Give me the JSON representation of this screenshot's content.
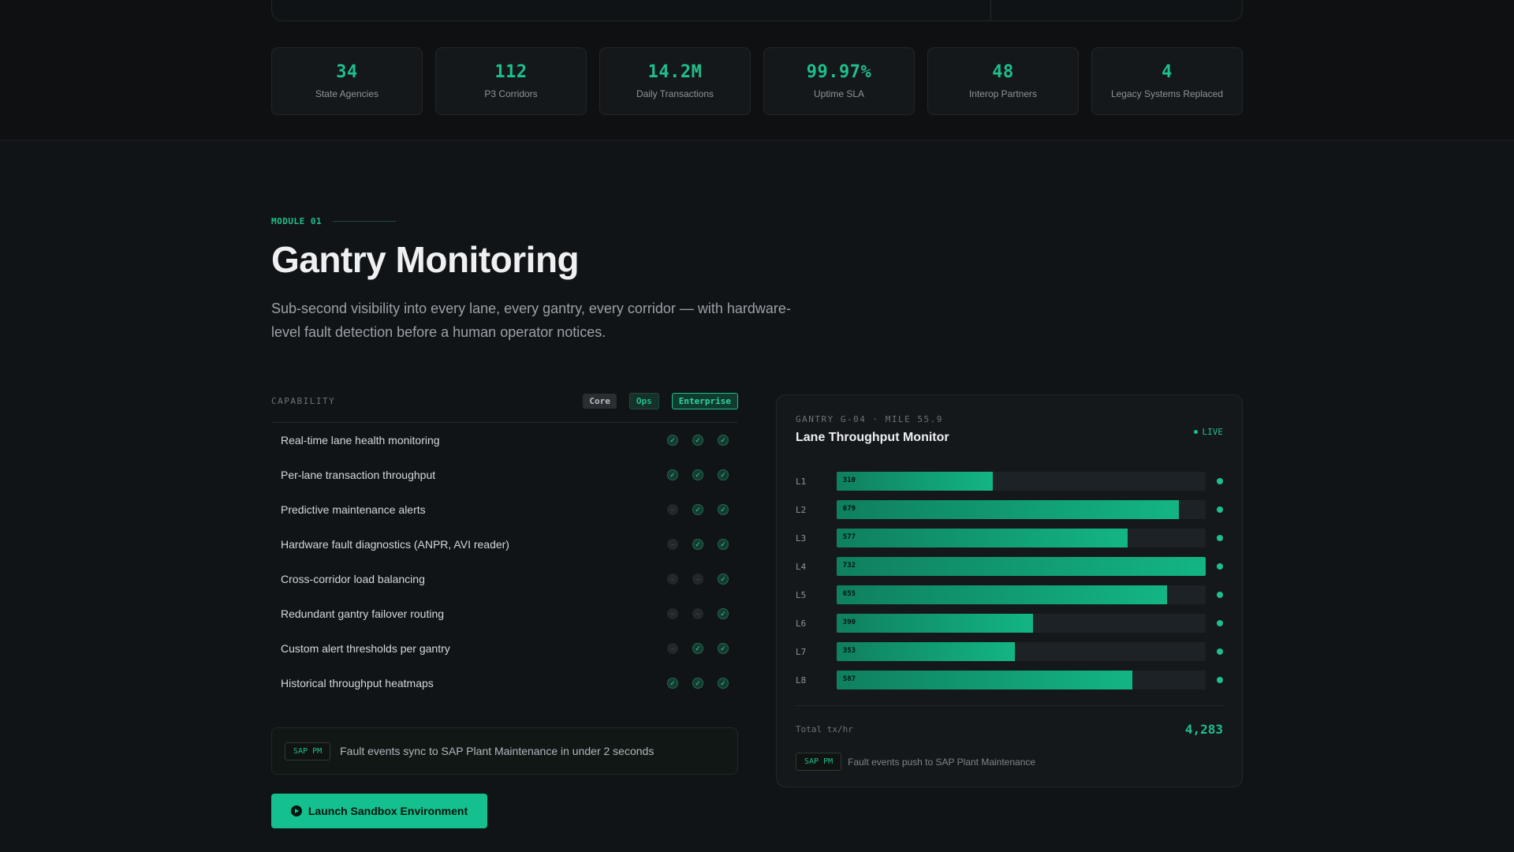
{
  "stats": [
    {
      "value": "34",
      "label": "State Agencies"
    },
    {
      "value": "112",
      "label": "P3 Corridors"
    },
    {
      "value": "14.2M",
      "label": "Daily Transactions"
    },
    {
      "value": "99.97%",
      "label": "Uptime SLA"
    },
    {
      "value": "48",
      "label": "Interop Partners"
    },
    {
      "value": "4",
      "label": "Legacy Systems Replaced"
    }
  ],
  "module": {
    "tag": "MODULE 01",
    "title": "Gantry Monitoring",
    "subtitle": "Sub-second visibility into every lane, every gantry, every corridor — with hardware-level fault detection before a human operator notices."
  },
  "capability": {
    "header": "CAPABILITY",
    "tiers": [
      "Core",
      "Ops",
      "Enterprise"
    ],
    "rows": [
      {
        "label": "Real-time lane health monitoring",
        "core": true,
        "ops": true,
        "enterprise": true
      },
      {
        "label": "Per-lane transaction throughput",
        "core": true,
        "ops": true,
        "enterprise": true
      },
      {
        "label": "Predictive maintenance alerts",
        "core": false,
        "ops": true,
        "enterprise": true
      },
      {
        "label": "Hardware fault diagnostics (ANPR, AVI reader)",
        "core": false,
        "ops": true,
        "enterprise": true
      },
      {
        "label": "Cross-corridor load balancing",
        "core": false,
        "ops": false,
        "enterprise": true
      },
      {
        "label": "Redundant gantry failover routing",
        "core": false,
        "ops": false,
        "enterprise": true
      },
      {
        "label": "Custom alert thresholds per gantry",
        "core": false,
        "ops": true,
        "enterprise": true
      },
      {
        "label": "Historical throughput heatmaps",
        "core": true,
        "ops": true,
        "enterprise": true
      }
    ],
    "sap_badge": "SAP PM",
    "sap_text": "Fault events sync to SAP Plant Maintenance in under 2 seconds"
  },
  "launch_label": "Launch Sandbox Environment",
  "monitor": {
    "subtitle": "GANTRY G-04 · MILE 55.9",
    "title": "Lane Throughput Monitor",
    "live_label": "LIVE",
    "max": 732,
    "lanes": [
      {
        "label": "L1",
        "value": 310
      },
      {
        "label": "L2",
        "value": 679
      },
      {
        "label": "L3",
        "value": 577
      },
      {
        "label": "L4",
        "value": 732
      },
      {
        "label": "L5",
        "value": 655
      },
      {
        "label": "L6",
        "value": 390
      },
      {
        "label": "L7",
        "value": 353
      },
      {
        "label": "L8",
        "value": 587
      }
    ],
    "total_label": "Total tx/hr",
    "total_value": "4,283",
    "sap_badge": "SAP PM",
    "sap_text": "Fault events push to SAP Plant Maintenance"
  },
  "colors": {
    "accent": "#1fbf8b",
    "background": "#111417",
    "panel": "#14181b"
  },
  "icons": {
    "check": "check-icon",
    "dash": "dash-icon",
    "play": "play-icon",
    "live": "live-dot-icon"
  }
}
